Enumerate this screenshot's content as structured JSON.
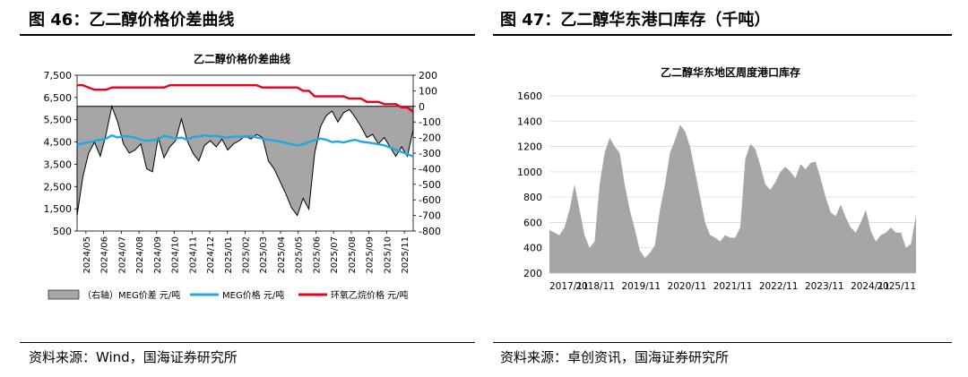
{
  "left": {
    "figure_title": "图 46：乙二醇价格价差曲线",
    "source": "资料来源：Wind，国海证券研究所"
  },
  "right": {
    "figure_title": "图 47：乙二醇华东港口库存（千吨）",
    "source": "资料来源：卓创资讯，国海证券研究所"
  },
  "colors": {
    "spread_fill": "#a6a6a6",
    "meg": "#1fa9e1",
    "eo": "#e8001c",
    "inventory": "#a6a6a6"
  },
  "chart_data": [
    {
      "type": "line",
      "title": "乙二醇价格价差曲线",
      "x_ticks": [
        "2024/05",
        "2024/06",
        "2024/07",
        "2024/08",
        "2024/09",
        "2024/10",
        "2024/11",
        "2024/12",
        "2025/01",
        "2025/02",
        "2025/03",
        "2025/04",
        "2025/05",
        "2025/06",
        "2025/07",
        "2025/08",
        "2025/09",
        "2025/10",
        "2025/11"
      ],
      "y_left": {
        "ticks": [
          7500,
          6500,
          5500,
          4500,
          3500,
          2500,
          1500,
          500
        ],
        "ylim": [
          500,
          7500
        ]
      },
      "y_right": {
        "ticks": [
          200,
          100,
          0,
          -100,
          -200,
          -300,
          -400,
          -500,
          -600,
          -700,
          -800
        ],
        "ylim": [
          -800,
          200
        ]
      },
      "series": [
        {
          "name": "（右轴）MEG价差  元/吨",
          "type": "area",
          "axis": "right",
          "values": [
            -700,
            -450,
            -300,
            -230,
            -320,
            -180,
            0,
            -100,
            -240,
            -300,
            -280,
            -240,
            -400,
            -420,
            -200,
            -330,
            -260,
            -220,
            -80,
            -220,
            -300,
            -350,
            -250,
            -220,
            -260,
            -210,
            -280,
            -240,
            -220,
            -190,
            -210,
            -180,
            -200,
            -350,
            -400,
            -480,
            -560,
            -650,
            -700,
            -590,
            -660,
            -300,
            -130,
            -60,
            -30,
            -100,
            -40,
            -20,
            -70,
            -130,
            -200,
            -180,
            -240,
            -200,
            -260,
            -320,
            -260,
            -320,
            -150
          ]
        },
        {
          "name": "MEG价格  元/吨",
          "type": "line",
          "axis": "left",
          "values": [
            4350,
            4450,
            4480,
            4550,
            4600,
            4650,
            4800,
            4700,
            4760,
            4750,
            4700,
            4600,
            4560,
            4580,
            4620,
            4780,
            4720,
            4650,
            4700,
            4600,
            4720,
            4750,
            4800,
            4760,
            4780,
            4720,
            4700,
            4740,
            4750,
            4720,
            4760,
            4700,
            4650,
            4600,
            4560,
            4520,
            4460,
            4400,
            4340,
            4400,
            4500,
            4580,
            4650,
            4600,
            4500,
            4520,
            4480,
            4550,
            4600,
            4520,
            4480,
            4450,
            4400,
            4350,
            4250,
            4150,
            4050,
            3950,
            3850
          ]
        },
        {
          "name": "环氧乙烷价格  元/吨",
          "type": "line",
          "axis": "left",
          "values": [
            7050,
            7050,
            6950,
            6850,
            6850,
            6850,
            6950,
            6950,
            6950,
            6950,
            6950,
            6950,
            6950,
            6950,
            6950,
            6950,
            7050,
            7050,
            7050,
            7050,
            7050,
            7050,
            7050,
            7050,
            7050,
            7050,
            7050,
            7050,
            7050,
            7050,
            7050,
            7050,
            6950,
            6950,
            6950,
            6950,
            6950,
            6950,
            6950,
            6800,
            6800,
            6550,
            6550,
            6550,
            6550,
            6550,
            6550,
            6450,
            6450,
            6450,
            6300,
            6300,
            6300,
            6200,
            6200,
            6200,
            6050,
            6050,
            5850
          ]
        }
      ]
    },
    {
      "type": "area",
      "title": "乙二醇华东地区周度港口库存",
      "x_ticks": [
        "2017/11",
        "2018/11",
        "2019/11",
        "2020/11",
        "2021/11",
        "2022/11",
        "2023/11",
        "2024/11",
        "2025/11"
      ],
      "ylim": [
        200,
        1600
      ],
      "y_ticks": [
        1600,
        1400,
        1200,
        1000,
        800,
        600,
        400,
        200
      ],
      "series": [
        {
          "name": "港口库存（千吨）",
          "values": [
            540,
            520,
            500,
            560,
            700,
            900,
            700,
            500,
            400,
            450,
            900,
            1150,
            1270,
            1200,
            1150,
            900,
            700,
            550,
            380,
            320,
            360,
            420,
            700,
            900,
            1150,
            1250,
            1370,
            1320,
            1200,
            1000,
            800,
            600,
            500,
            480,
            450,
            500,
            480,
            480,
            560,
            1100,
            1220,
            1180,
            1050,
            900,
            860,
            920,
            1000,
            1040,
            1000,
            950,
            1060,
            1020,
            1070,
            1080,
            950,
            800,
            680,
            650,
            740,
            640,
            560,
            520,
            600,
            700,
            530,
            450,
            500,
            520,
            560,
            520,
            520,
            400,
            430,
            660
          ]
        }
      ]
    }
  ]
}
